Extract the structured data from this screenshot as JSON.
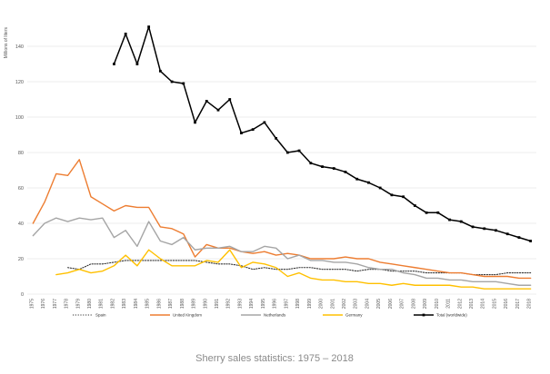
{
  "chart_data": {
    "type": "line",
    "title": "",
    "caption": "Sherry sales statistics: 1975 – 2018",
    "xlabel": "",
    "ylabel": "Millions of liters",
    "ylim": [
      0,
      160
    ],
    "yticks": [
      0,
      20,
      40,
      60,
      80,
      100,
      120,
      140
    ],
    "grid": "horizontal",
    "legend_position": "bottom",
    "x": [
      "1975",
      "1976",
      "1977",
      "1978",
      "1979",
      "1980",
      "1981",
      "1982",
      "1983",
      "1984",
      "1985",
      "1986",
      "1987",
      "1988",
      "1989",
      "1990",
      "1991",
      "1992",
      "1993",
      "1994",
      "1995",
      "1996",
      "1997",
      "1998",
      "1999",
      "2000",
      "2001",
      "2002",
      "2003",
      "2004",
      "2005",
      "2006",
      "2007",
      "2008",
      "2009",
      "2010",
      "2011",
      "2012",
      "2013",
      "2014",
      "2015",
      "2016",
      "2017",
      "2018"
    ],
    "series": [
      {
        "name": "Spain",
        "color": "#333333",
        "style": "dotted",
        "values": [
          null,
          null,
          null,
          15,
          14,
          17,
          17,
          18,
          19,
          19,
          19,
          19,
          19,
          19,
          19,
          18,
          17,
          17,
          16,
          14,
          15,
          14,
          14,
          15,
          15,
          14,
          14,
          14,
          13,
          14,
          14,
          13,
          13,
          13,
          12,
          12,
          12,
          12,
          11,
          11,
          11,
          12,
          12,
          12
        ]
      },
      {
        "name": "United Kingdom",
        "color": "#ed7d31",
        "style": "solid",
        "values": [
          40,
          52,
          68,
          67,
          76,
          55,
          51,
          47,
          50,
          49,
          49,
          38,
          37,
          34,
          21,
          28,
          26,
          26,
          24,
          23,
          24,
          22,
          23,
          22,
          20,
          20,
          20,
          21,
          20,
          20,
          18,
          17,
          16,
          15,
          14,
          13,
          12,
          12,
          11,
          10,
          10,
          10,
          9,
          9
        ]
      },
      {
        "name": "Netherlands",
        "color": "#a5a5a5",
        "style": "solid",
        "values": [
          33,
          40,
          43,
          41,
          43,
          42,
          43,
          32,
          36,
          27,
          41,
          30,
          28,
          32,
          25,
          26,
          26,
          27,
          24,
          24,
          27,
          26,
          20,
          22,
          19,
          19,
          18,
          18,
          17,
          15,
          14,
          14,
          12,
          11,
          9,
          9,
          8,
          8,
          7,
          7,
          7,
          6,
          5,
          5
        ]
      },
      {
        "name": "Germany",
        "color": "#ffc000",
        "style": "solid",
        "values": [
          null,
          null,
          11,
          12,
          14,
          12,
          13,
          16,
          22,
          16,
          25,
          20,
          16,
          16,
          16,
          19,
          18,
          25,
          15,
          18,
          17,
          15,
          10,
          12,
          9,
          8,
          8,
          7,
          7,
          6,
          6,
          5,
          6,
          5,
          5,
          5,
          5,
          4,
          4,
          3,
          3,
          3,
          3,
          3
        ]
      },
      {
        "name": "Total (worldwide)",
        "color": "#000000",
        "style": "solid-marker",
        "values": [
          null,
          null,
          null,
          null,
          null,
          null,
          null,
          130,
          147,
          130,
          151,
          126,
          120,
          119,
          97,
          109,
          104,
          110,
          91,
          93,
          97,
          88,
          80,
          81,
          74,
          72,
          71,
          69,
          65,
          63,
          60,
          56,
          55,
          50,
          46,
          46,
          42,
          41,
          38,
          37,
          36,
          34,
          32,
          30
        ]
      }
    ]
  }
}
